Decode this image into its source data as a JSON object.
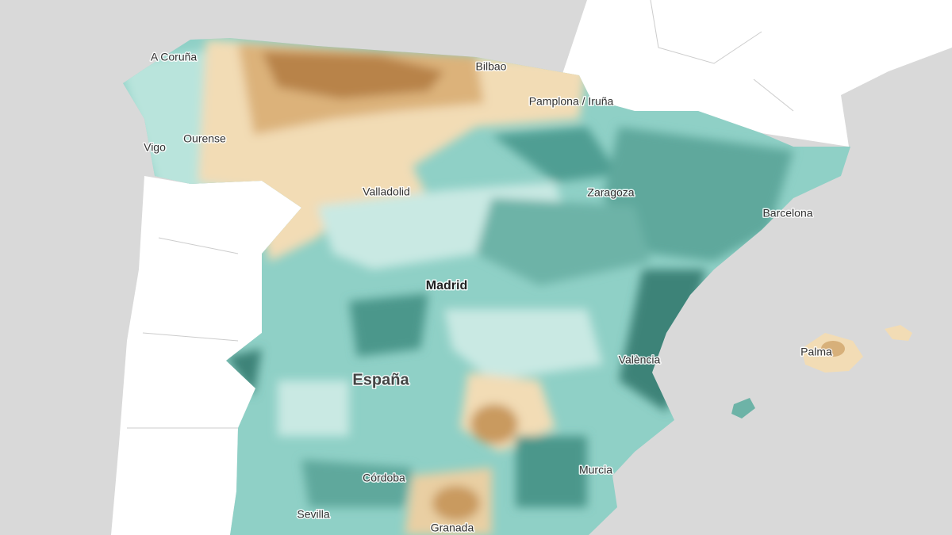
{
  "labels": [
    "A Coruña",
    "Bilbao",
    "Pamplona / Iruña",
    "Vigo",
    "Ourense",
    "Valladolid",
    "Zaragoza",
    "Barcelona",
    "Madrid",
    "España",
    "València",
    "Palma",
    "Córdoba",
    "Murcia",
    "Sevilla",
    "Granada"
  ]
}
